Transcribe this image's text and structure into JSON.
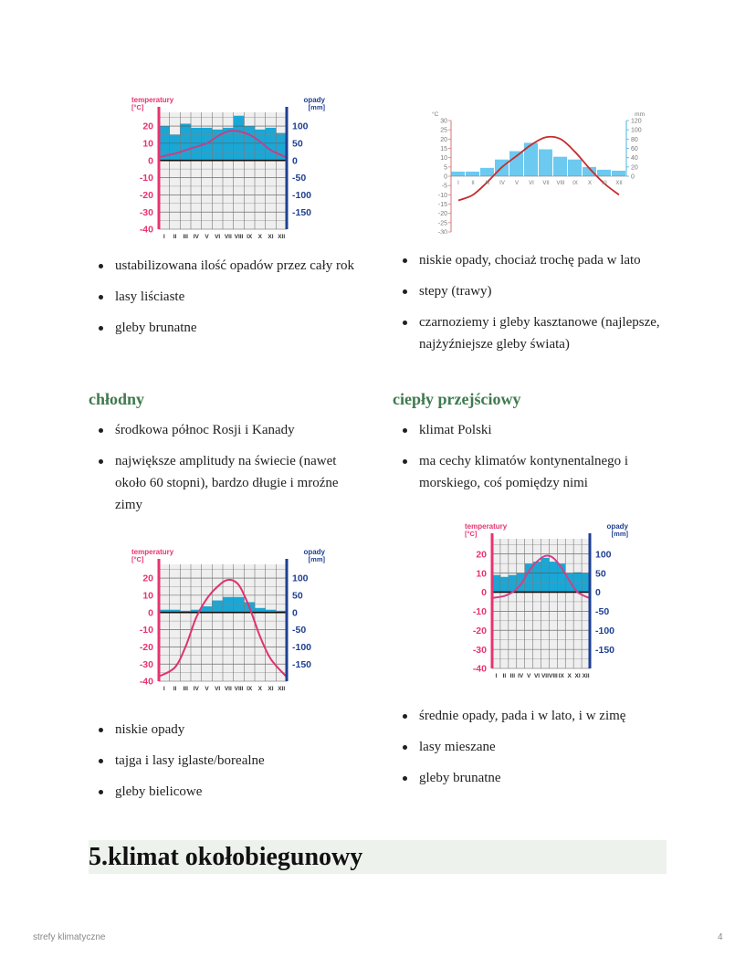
{
  "top_left": {
    "bullets": [
      "ustabilizowana ilość opadów przez cały rok",
      "lasy liściaste",
      "gleby brunatne"
    ]
  },
  "top_right": {
    "bullets": [
      "niskie opady, chociaż trochę pada w lato",
      "stepy (trawy)",
      "czarnoziemy i gleby kasztanowe (najlepsze, najżyźniejsze gleby świata)"
    ]
  },
  "cold": {
    "heading": "chłodny",
    "bullets_top": [
      "środkowa północ Rosji i Kanady",
      "największe amplitudy na świecie (nawet około 60 stopni), bardzo długie i mroźne zimy"
    ],
    "bullets_bottom": [
      "niskie opady",
      "tajga i lasy iglaste/borealne",
      "gleby bielicowe"
    ]
  },
  "warm_transitional": {
    "heading": "ciepły przejściowy",
    "bullets_top": [
      "klimat Polski",
      "ma cechy klimatów kontynentalnego i morskiego, coś pomiędzy nimi"
    ],
    "bullets_bottom": [
      "średnie opady, pada i w lato, i w zimę",
      "lasy mieszane",
      "gleby brunatne"
    ]
  },
  "section_heading": "5.klimat okołobiegunowy",
  "footer": {
    "doc_title": "strefy klimatyczne",
    "page_number": "4"
  },
  "chart_data": [
    {
      "type": "bar+line",
      "style": "A",
      "temp_label": "temperatury",
      "temp_unit": "[°C]",
      "precip_label": "opady",
      "precip_unit": "[mm]",
      "categories": [
        "I",
        "II",
        "III",
        "IV",
        "V",
        "VI",
        "VII",
        "VIII",
        "IX",
        "X",
        "XI",
        "XII"
      ],
      "temperature": [
        2,
        4,
        6,
        8,
        10,
        14,
        17,
        17,
        15,
        11,
        6,
        2
      ],
      "precipitation": [
        100,
        75,
        107,
        95,
        95,
        90,
        95,
        130,
        100,
        90,
        95,
        80
      ],
      "temp_ticks": [
        20,
        10,
        0,
        -10,
        -20,
        -30,
        -40
      ],
      "precip_ticks": [
        100,
        50,
        0,
        -50,
        -100,
        -150
      ],
      "ylim_temp": [
        -40,
        28
      ],
      "grid": true,
      "colors": {
        "bars": "#1aa7d6",
        "line": "#c2408a",
        "left_axis": "#e8336f",
        "right_axis": "#1f3f93"
      }
    },
    {
      "type": "bar+line",
      "style": "B",
      "temp_label": "°C",
      "precip_label": "mm",
      "categories": [
        "I",
        "II",
        "III",
        "IV",
        "V",
        "VI",
        "VII",
        "VIII",
        "IX",
        "X",
        "XI",
        "XII"
      ],
      "temperature": [
        -13,
        -10,
        -3,
        5,
        11,
        17,
        21,
        20,
        13,
        4,
        -4,
        -10
      ],
      "precipitation": [
        10,
        10,
        18,
        36,
        54,
        72,
        58,
        42,
        36,
        20,
        14,
        12
      ],
      "temp_ticks": [
        30,
        25,
        20,
        15,
        10,
        5,
        0,
        -5,
        -10,
        -15,
        -20,
        -25,
        -30
      ],
      "precip_ticks": [
        120,
        100,
        80,
        60,
        40,
        20,
        0
      ],
      "ylim_temp": [
        -30,
        30
      ],
      "grid": false,
      "colors": {
        "bars": "#5cc3ee",
        "line": "#c62d2d",
        "left_axis": "#d27a7a",
        "right_axis": "#4fb3dd"
      }
    },
    {
      "type": "bar+line",
      "style": "A",
      "temp_label": "temperatury",
      "temp_unit": "[°C]",
      "precip_label": "opady",
      "precip_unit": "[mm]",
      "categories": [
        "I",
        "II",
        "III",
        "IV",
        "V",
        "VI",
        "VII",
        "VIII",
        "IX",
        "X",
        "XI",
        "XII"
      ],
      "temperature": [
        -37,
        -32,
        -20,
        -3,
        8,
        15,
        19,
        16,
        3,
        -14,
        -27,
        -37
      ],
      "precipitation": [
        8,
        8,
        5,
        8,
        18,
        35,
        45,
        45,
        30,
        13,
        8,
        5
      ],
      "temp_ticks": [
        20,
        10,
        0,
        -10,
        -20,
        -30,
        -40
      ],
      "precip_ticks": [
        100,
        50,
        0,
        -50,
        -100,
        -150
      ],
      "ylim_temp": [
        -40,
        28
      ],
      "grid": true,
      "colors": {
        "bars": "#1aa7d6",
        "line": "#e0326f",
        "left_axis": "#e8336f",
        "right_axis": "#1f3f93"
      }
    },
    {
      "type": "bar+line",
      "style": "A",
      "temp_label": "temperatury",
      "temp_unit": "[°C]",
      "precip_label": "opady",
      "precip_unit": "[mm]",
      "categories": [
        "I",
        "II",
        "III",
        "IV",
        "V",
        "VI",
        "VII",
        "VIII",
        "IX",
        "X",
        "XI",
        "XII"
      ],
      "temperature": [
        -3,
        -2,
        0,
        4,
        11,
        16,
        19,
        18,
        13,
        6,
        0,
        -3
      ],
      "precipitation": [
        45,
        40,
        45,
        50,
        75,
        80,
        90,
        80,
        75,
        50,
        52,
        50
      ],
      "temp_ticks": [
        20,
        10,
        0,
        -10,
        -20,
        -30,
        -40
      ],
      "precip_ticks": [
        100,
        50,
        0,
        -50,
        -100,
        -150
      ],
      "ylim_temp": [
        -40,
        28
      ],
      "grid": true,
      "colors": {
        "bars": "#1aa7d6",
        "line": "#d0408a",
        "left_axis": "#e8336f",
        "right_axis": "#1f3f93"
      }
    }
  ]
}
